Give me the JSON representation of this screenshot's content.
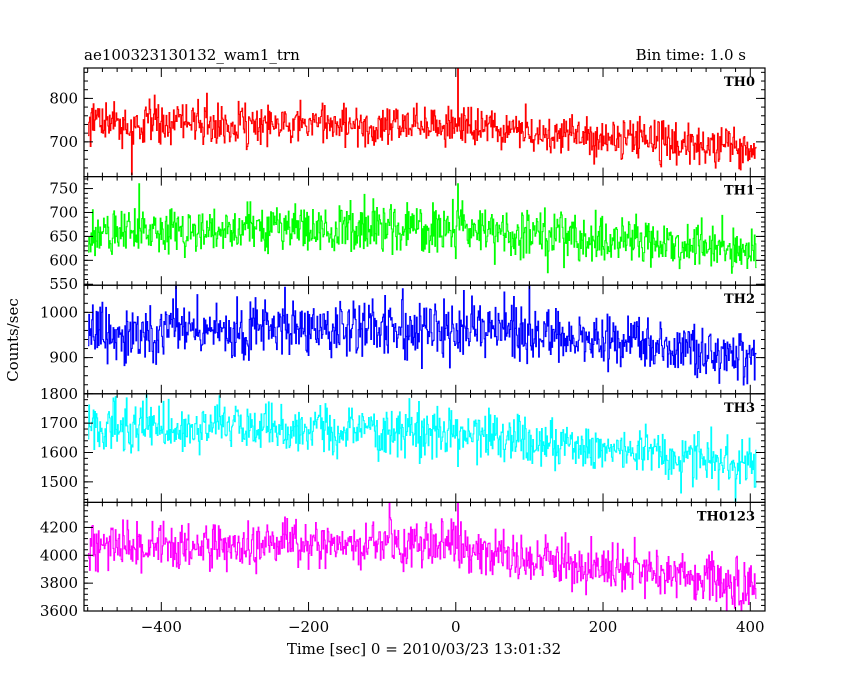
{
  "header": {
    "title": "ae100323130132_wam1_trn",
    "bin_time": "Bin time: 1.0 s"
  },
  "chart_data": {
    "type": "line",
    "xlabel": "Time [sec] 0 = 2010/03/23 13:01:32",
    "ylabel": "Counts/sec",
    "xlim": [
      -505,
      420
    ],
    "xticks": [
      -400,
      -200,
      0,
      200,
      400
    ],
    "xtick_labels": [
      "−400",
      "−200",
      "0",
      "200",
      "400"
    ],
    "x_start": -499,
    "x_end": 408,
    "bin_width": 1.0,
    "panels": [
      {
        "name": "TH0",
        "color": "#ff0000",
        "ylim": [
          620,
          870
        ],
        "yticks": [
          700,
          800
        ],
        "trend": [
          [
            -499,
            745
          ],
          [
            -300,
            742
          ],
          [
            0,
            735
          ],
          [
            200,
            710
          ],
          [
            408,
            680
          ]
        ],
        "noise": 24,
        "spikes": [
          [
            3,
            870
          ],
          [
            -440,
            625
          ]
        ]
      },
      {
        "name": "TH1",
        "color": "#00ff00",
        "ylim": [
          548,
          775
        ],
        "yticks": [
          550,
          600,
          650,
          700,
          750
        ],
        "trend": [
          [
            -499,
            660
          ],
          [
            -300,
            665
          ],
          [
            0,
            665
          ],
          [
            200,
            640
          ],
          [
            408,
            625
          ]
        ],
        "noise": 26,
        "spikes": [
          [
            3,
            760
          ],
          [
            -430,
            760
          ]
        ]
      },
      {
        "name": "TH2",
        "color": "#0000ff",
        "ylim": [
          820,
          1060
        ],
        "yticks": [
          900,
          1000
        ],
        "trend": [
          [
            -499,
            950
          ],
          [
            -300,
            965
          ],
          [
            0,
            965
          ],
          [
            200,
            935
          ],
          [
            408,
            905
          ]
        ],
        "noise": 32,
        "spikes": [
          [
            100,
            1060
          ],
          [
            -380,
            1060
          ]
        ]
      },
      {
        "name": "TH3",
        "color": "#00ffff",
        "ylim": [
          1430,
          1800
        ],
        "yticks": [
          1500,
          1600,
          1700,
          1800
        ],
        "trend": [
          [
            -499,
            1680
          ],
          [
            -300,
            1690
          ],
          [
            0,
            1665
          ],
          [
            200,
            1615
          ],
          [
            408,
            1550
          ]
        ],
        "noise": 42,
        "spikes": [
          [
            380,
            1430
          ],
          [
            -420,
            1800
          ]
        ]
      },
      {
        "name": "TH0123",
        "color": "#ff00ff",
        "ylim": [
          3600,
          4380
        ],
        "yticks": [
          3600,
          3800,
          4000,
          4200
        ],
        "trend": [
          [
            -499,
            4050
          ],
          [
            -300,
            4080
          ],
          [
            0,
            4080
          ],
          [
            100,
            3970
          ],
          [
            250,
            3900
          ],
          [
            408,
            3760
          ]
        ],
        "noise": 85,
        "spikes": [
          [
            3,
            4380
          ],
          [
            -90,
            4380
          ]
        ]
      }
    ]
  }
}
